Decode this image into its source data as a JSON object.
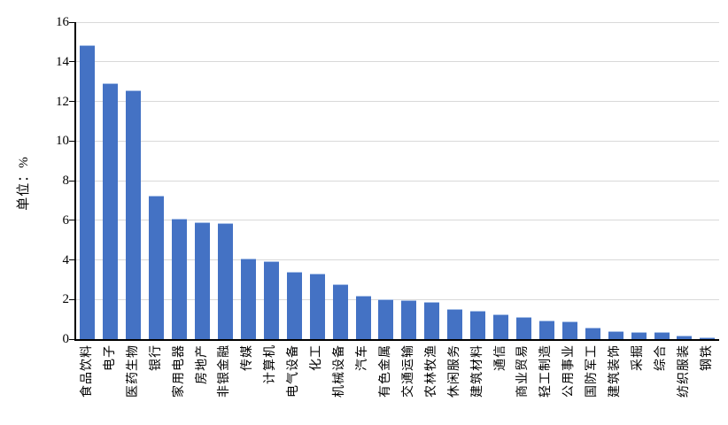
{
  "chart_data": {
    "type": "bar",
    "title": "",
    "ylabel": "单位：%",
    "xlabel": "",
    "categories": [
      "食品饮料",
      "电子",
      "医药生物",
      "银行",
      "家用电器",
      "房地产",
      "非银金融",
      "传媒",
      "计算机",
      "电气设备",
      "化工",
      "机械设备",
      "汽车",
      "有色金属",
      "交通运输",
      "农林牧渔",
      "休闲服务",
      "建筑材料",
      "通信",
      "商业贸易",
      "轻工制造",
      "公用事业",
      "国防军工",
      "建筑装饰",
      "采掘",
      "综合",
      "纺织服装",
      "钢铁"
    ],
    "values": [
      14.85,
      12.9,
      12.55,
      7.25,
      6.1,
      5.9,
      5.85,
      4.05,
      3.95,
      3.4,
      3.3,
      2.75,
      2.2,
      2.0,
      1.95,
      1.9,
      1.5,
      1.45,
      1.25,
      1.1,
      0.95,
      0.9,
      0.6,
      0.4,
      0.35,
      0.35,
      0.2,
      0.1
    ],
    "ylim": [
      0,
      16
    ],
    "ytick_step": 2,
    "ytick_labels": [
      "0",
      "2",
      "4",
      "6",
      "8",
      "10",
      "12",
      "14",
      "16"
    ],
    "grid": true,
    "legend": "none",
    "bar_color": "#4472C4",
    "bar_border_color": "#A9C1E8",
    "gridline_color": "#D9D9D9",
    "axis_color": "#000000",
    "text_color": "#000000"
  }
}
